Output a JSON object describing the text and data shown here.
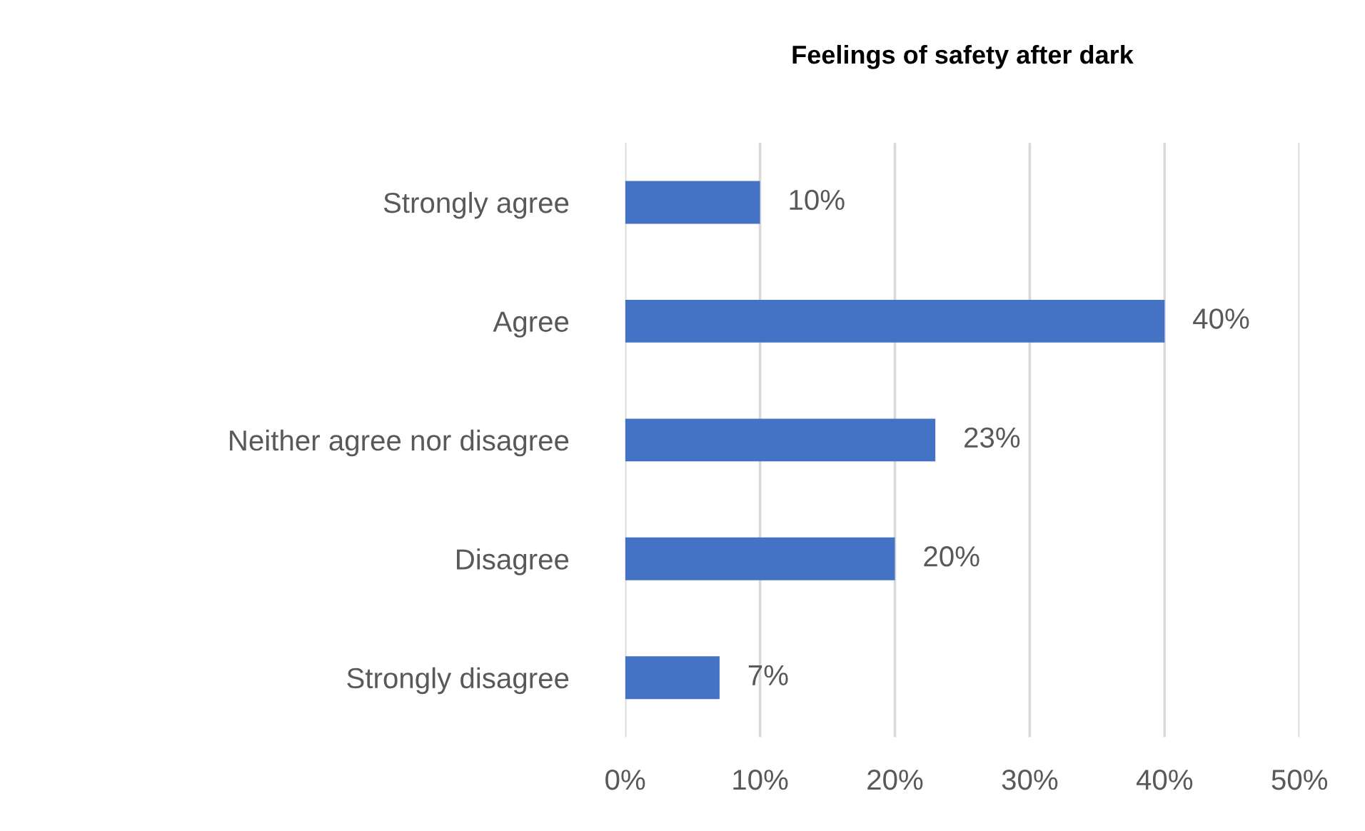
{
  "chart_data": {
    "type": "bar",
    "orientation": "horizontal",
    "title": "Feelings of safety after dark",
    "categories": [
      "Strongly agree",
      "Agree",
      "Neither agree nor disagree",
      "Disagree",
      "Strongly disagree"
    ],
    "values": [
      10,
      40,
      23,
      20,
      7
    ],
    "color": "#4472c4",
    "value_labels": [
      "10%",
      "40%",
      "23%",
      "20%",
      "7%"
    ],
    "xlim": [
      0,
      50
    ],
    "xticks": [
      {
        "value": 0,
        "label": "0%"
      },
      {
        "value": 10,
        "label": "10%"
      },
      {
        "value": 20,
        "label": "20%"
      },
      {
        "value": 30,
        "label": "30%"
      },
      {
        "value": 40,
        "label": "40%"
      },
      {
        "value": 50,
        "label": "50%"
      }
    ],
    "grid": "x",
    "legend": false
  }
}
